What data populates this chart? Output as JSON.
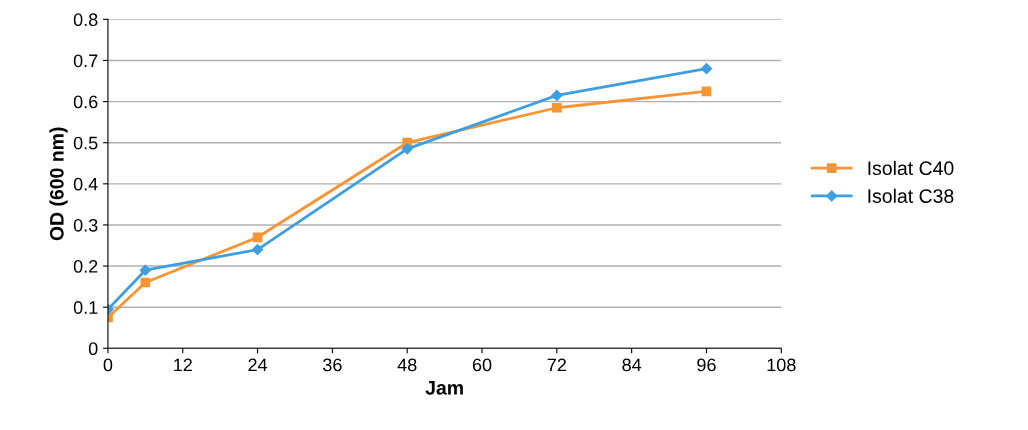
{
  "chart_data": {
    "type": "line",
    "xlabel": "Jam",
    "ylabel": "OD (600 nm)",
    "x": [
      0,
      6,
      24,
      48,
      72,
      96
    ],
    "series": [
      {
        "name": "Isolat C40",
        "color": "#f79433",
        "marker": "square",
        "values": [
          0.075,
          0.16,
          0.27,
          0.5,
          0.585,
          0.625
        ]
      },
      {
        "name": "Isolat C38",
        "color": "#3d9ee0",
        "marker": "diamond",
        "values": [
          0.095,
          0.19,
          0.24,
          0.485,
          0.615,
          0.68
        ]
      }
    ],
    "xlim": [
      0,
      108
    ],
    "xticks": [
      0,
      12,
      24,
      36,
      48,
      60,
      72,
      84,
      96,
      108
    ],
    "ylim": [
      0,
      0.8
    ],
    "yticks": [
      0,
      0.1,
      0.2,
      0.3,
      0.4,
      0.5,
      0.6,
      0.7,
      0.8
    ],
    "grid": "y",
    "legend": "right",
    "line_style": "solid"
  }
}
